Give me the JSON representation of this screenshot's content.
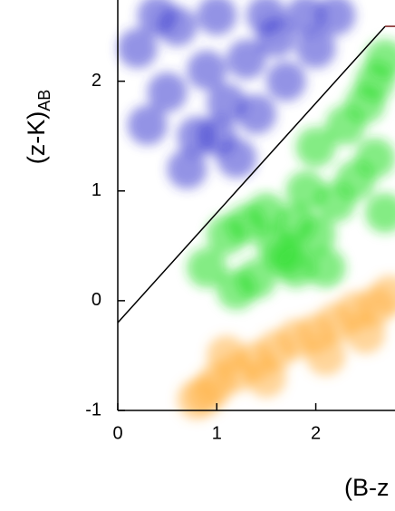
{
  "chart_data": {
    "type": "scatter",
    "xlabel": "(B-z",
    "ylabel": "(z-K)",
    "ylabel_sub": "AB",
    "xlim": [
      0,
      2.8
    ],
    "ylim": [
      -1,
      2.74
    ],
    "xticks": [
      0,
      1,
      2
    ],
    "yticks": [
      -1,
      0,
      1,
      2
    ],
    "series": [
      {
        "color": "#3a3ad0",
        "x": [
          0.3,
          0.2,
          0.5,
          0.6,
          0.8,
          0.9,
          1.0,
          1.1,
          1.3,
          1.4,
          1.2,
          1.6,
          1.7,
          1.9,
          2.0,
          2.2,
          0.7,
          1.5,
          0.4,
          1.0
        ],
        "y": [
          1.6,
          2.3,
          1.9,
          2.5,
          1.5,
          2.1,
          2.6,
          1.8,
          2.2,
          1.7,
          1.3,
          2.4,
          2.0,
          2.6,
          2.3,
          2.6,
          1.2,
          2.6,
          2.6,
          1.5
        ]
      },
      {
        "color": "#22dd22",
        "x": [
          1.7,
          1.8,
          1.6,
          2.0,
          2.2,
          1.4,
          1.2,
          2.4,
          2.6,
          2.5,
          2.7,
          2.3,
          1.9,
          1.5,
          1.1,
          0.9,
          2.7,
          2.1,
          1.3,
          2.6,
          2.0,
          1.8
        ],
        "y": [
          0.4,
          0.3,
          0.5,
          0.6,
          0.9,
          0.2,
          0.1,
          1.1,
          1.3,
          1.8,
          2.2,
          1.6,
          1.0,
          0.8,
          0.6,
          0.3,
          0.8,
          0.3,
          0.7,
          2.0,
          1.4,
          0.7
        ]
      },
      {
        "color": "#ffb347",
        "x": [
          0.9,
          1.0,
          0.8,
          1.2,
          1.4,
          1.6,
          1.8,
          2.0,
          2.2,
          2.4,
          2.6,
          2.75,
          1.1,
          1.5,
          2.1,
          2.5
        ],
        "y": [
          -0.85,
          -0.75,
          -0.9,
          -0.65,
          -0.55,
          -0.45,
          -0.35,
          -0.3,
          -0.2,
          -0.1,
          -0.05,
          0.05,
          -0.5,
          -0.7,
          -0.5,
          -0.3
        ]
      }
    ],
    "lines": [
      {
        "color": "#000000",
        "x": [
          0,
          2.7
        ],
        "y": [
          -0.2,
          2.5
        ]
      },
      {
        "color": "#7a1a1a",
        "x": [
          2.7,
          2.8
        ],
        "y": [
          2.5,
          2.5
        ]
      }
    ]
  }
}
